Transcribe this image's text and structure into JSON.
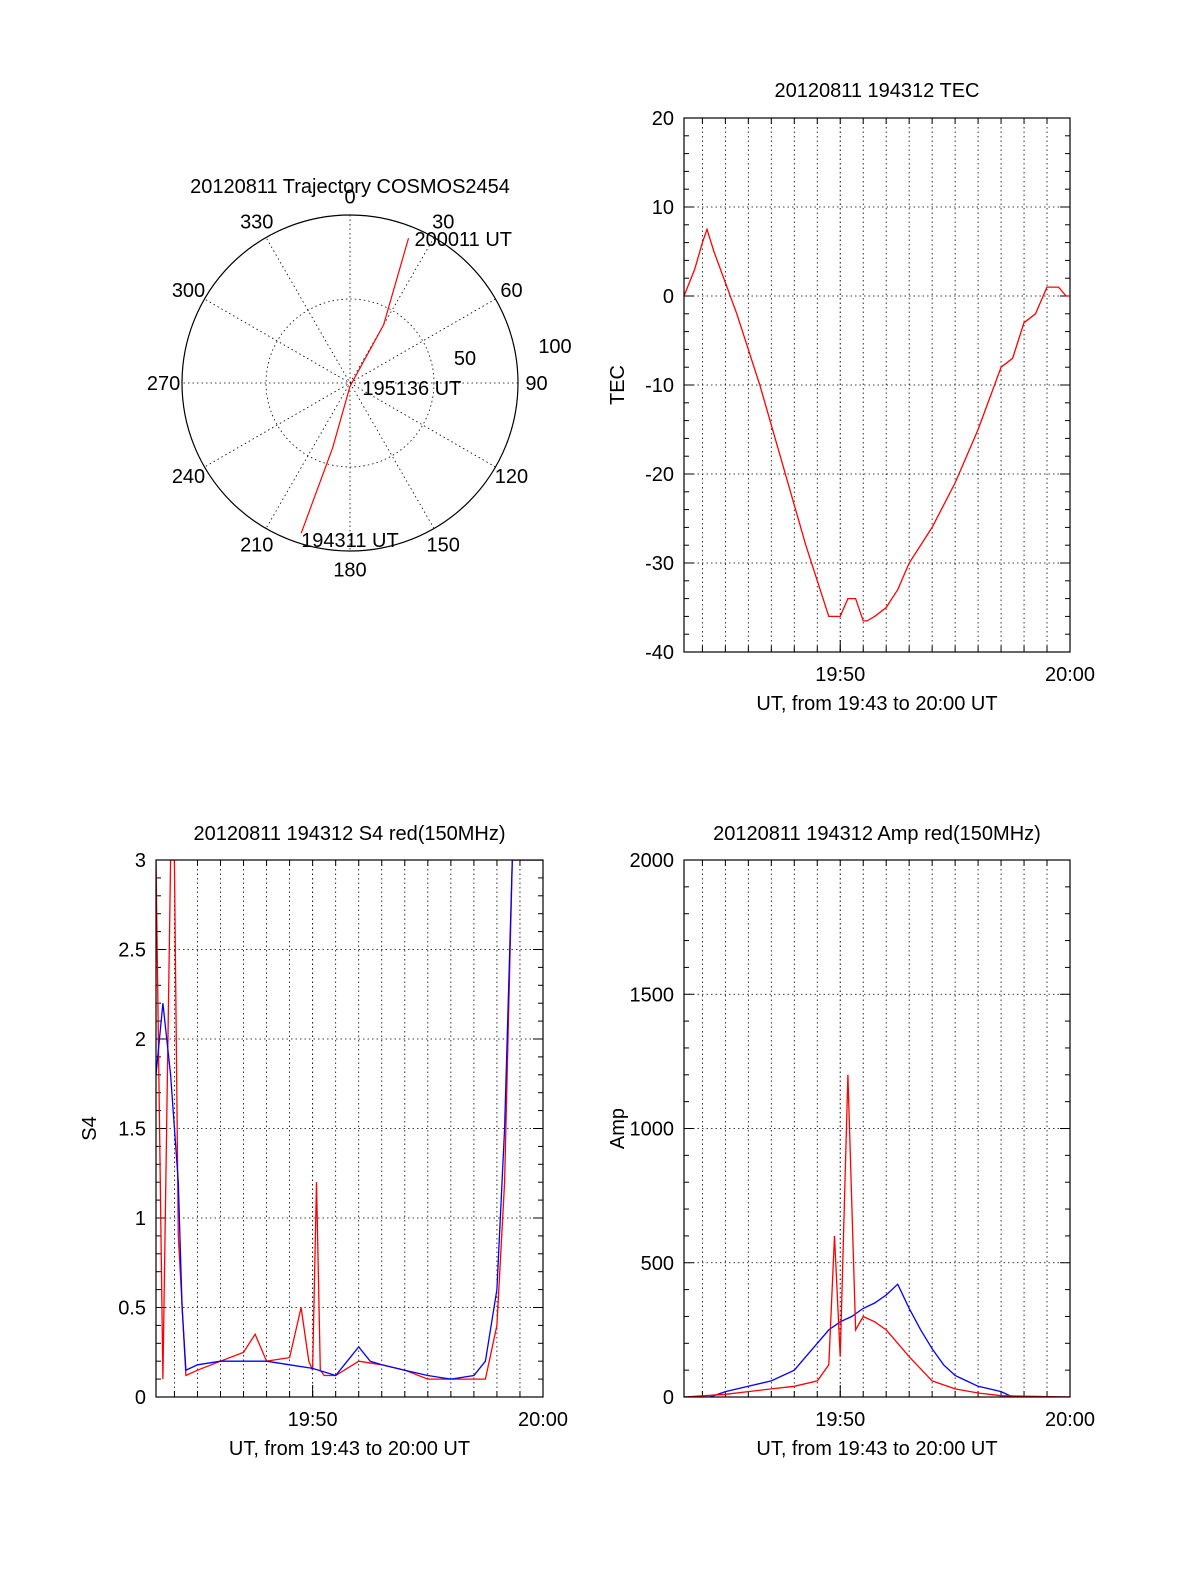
{
  "chart_data": [
    {
      "type": "polar",
      "title": "20120811 Trajectory COSMOS2454",
      "azimuth_labels": [
        "0",
        "30",
        "60",
        "90",
        "120",
        "150",
        "180",
        "210",
        "240",
        "270",
        "300",
        "330"
      ],
      "radial_labels": [
        "50",
        "100"
      ],
      "rlim": [
        0,
        100
      ],
      "grid": true,
      "trajectory": {
        "color": "#ff0000",
        "points": [
          {
            "az": 198,
            "r": 94
          },
          {
            "az": 195,
            "r": 40
          },
          {
            "az": 180,
            "r": 2
          },
          {
            "az": 30,
            "r": 40
          },
          {
            "az": 22,
            "r": 93
          }
        ]
      },
      "annotations": [
        {
          "text": "200011 UT",
          "az": 22,
          "r": 93
        },
        {
          "text": "195136 UT",
          "az": 90,
          "r": 5
        },
        {
          "text": "194311 UT",
          "az": 198,
          "r": 94
        }
      ]
    },
    {
      "type": "line",
      "title": "20120811 194312 TEC",
      "xlabel": "UT, from 19:43 to 20:00 UT",
      "ylabel": "TEC",
      "xlim": [
        "19:43:12",
        "20:00:00"
      ],
      "ylim": [
        -40,
        20
      ],
      "yticks": [
        "20",
        "10",
        "0",
        "-10",
        "-20",
        "-30",
        "-40"
      ],
      "xtick_labels": [
        "19:50",
        "20:00"
      ],
      "grid": true,
      "series": [
        {
          "color": "#ff0000",
          "x": [
            "19:43:12",
            "19:43:40",
            "19:44:00",
            "19:44:12",
            "19:44:30",
            "19:45:30",
            "19:46:30",
            "19:47:30",
            "19:48:30",
            "19:49:00",
            "19:49:30",
            "19:50:00",
            "19:50:20",
            "19:50:40",
            "19:51:00",
            "19:51:10",
            "19:51:30",
            "19:52:00",
            "19:52:30",
            "19:53:00",
            "19:54:00",
            "19:55:00",
            "19:56:00",
            "19:57:00",
            "19:57:30",
            "19:58:00",
            "19:58:30",
            "19:59:00",
            "19:59:30",
            "19:59:50",
            "20:00:00"
          ],
          "y": [
            0,
            3,
            6,
            7.5,
            5,
            -2,
            -10,
            -19,
            -28,
            -32,
            -36,
            -36,
            -34,
            -34,
            -36.5,
            -36.5,
            -36,
            -35,
            -33,
            -30,
            -26,
            -21,
            -15,
            -8,
            -7,
            -3,
            -2,
            1,
            1,
            0,
            0
          ]
        }
      ]
    },
    {
      "type": "line",
      "title": "20120811 194312 S4 red(150MHz)",
      "xlabel": "UT, from 19:43 to 20:00 UT",
      "ylabel": "S4",
      "xlim": [
        "19:43:12",
        "20:00:00"
      ],
      "ylim": [
        0,
        3
      ],
      "yticks": [
        "3",
        "2.5",
        "2",
        "1.5",
        "1",
        "0.5",
        "0"
      ],
      "xtick_labels": [
        "19:50",
        "20:00"
      ],
      "grid": true,
      "series": [
        {
          "color": "#ff0000",
          "x": [
            "19:43:12",
            "19:43:30",
            "19:43:50",
            "19:44:00",
            "19:44:10",
            "19:44:30",
            "19:45:00",
            "19:46:00",
            "19:47:00",
            "19:47:30",
            "19:48:00",
            "19:49:00",
            "19:49:30",
            "19:49:50",
            "19:50:00",
            "19:50:10",
            "19:50:20",
            "19:50:30",
            "19:51:00",
            "19:52:00",
            "19:53:00",
            "19:54:00",
            "19:55:00",
            "19:56:00",
            "19:57:00",
            "19:57:30",
            "19:58:00",
            "19:58:20",
            "19:58:40",
            "19:59:00",
            "19:59:30",
            "20:00:00"
          ],
          "y": [
            3,
            0.1,
            3,
            3,
            0.9,
            0.12,
            0.15,
            0.2,
            0.25,
            0.35,
            0.2,
            0.22,
            0.5,
            0.2,
            0.15,
            1.2,
            0.15,
            0.12,
            0.12,
            0.2,
            0.18,
            0.15,
            0.1,
            0.1,
            0.1,
            0.1,
            0.4,
            1.2,
            3,
            3,
            3,
            3
          ]
        },
        {
          "color": "#0000ff",
          "x": [
            "19:43:12",
            "19:43:30",
            "19:43:50",
            "19:44:10",
            "19:44:20",
            "19:44:30",
            "19:45:00",
            "19:46:00",
            "19:47:00",
            "19:48:00",
            "19:49:00",
            "19:50:00",
            "19:51:00",
            "19:51:30",
            "19:52:00",
            "19:52:30",
            "19:53:00",
            "19:54:00",
            "19:55:00",
            "19:56:00",
            "19:57:00",
            "19:57:30",
            "19:58:00",
            "19:58:20",
            "19:58:40",
            "19:59:00",
            "19:59:30",
            "20:00:00"
          ],
          "y": [
            1.8,
            2.2,
            1.8,
            1.2,
            0.5,
            0.15,
            0.18,
            0.2,
            0.2,
            0.2,
            0.18,
            0.16,
            0.12,
            0.2,
            0.28,
            0.2,
            0.18,
            0.15,
            0.12,
            0.1,
            0.12,
            0.2,
            0.6,
            1.5,
            3,
            3,
            3,
            3
          ]
        }
      ]
    },
    {
      "type": "line",
      "title": "20120811 194312 Amp red(150MHz)",
      "xlabel": "UT, from 19:43 to 20:00 UT",
      "ylabel": "Amp",
      "xlim": [
        "19:43:12",
        "20:00:00"
      ],
      "ylim": [
        0,
        2000
      ],
      "yticks": [
        "2000",
        "1500",
        "1000",
        "500",
        "0"
      ],
      "xtick_labels": [
        "19:50",
        "20:00"
      ],
      "grid": true,
      "series": [
        {
          "color": "#0000ff",
          "x": [
            "19:43:12",
            "19:44:20",
            "19:45:00",
            "19:46:00",
            "19:47:00",
            "19:48:00",
            "19:48:30",
            "19:49:00",
            "19:49:30",
            "19:50:00",
            "19:50:30",
            "19:51:00",
            "19:51:30",
            "19:52:00",
            "19:52:30",
            "19:53:00",
            "19:53:30",
            "19:54:00",
            "19:54:30",
            "19:55:00",
            "19:55:30",
            "19:56:00",
            "19:56:30",
            "19:57:00",
            "19:57:30",
            "20:00:00"
          ],
          "y": [
            0,
            0,
            20,
            40,
            60,
            100,
            150,
            200,
            250,
            280,
            300,
            330,
            350,
            380,
            420,
            330,
            250,
            180,
            120,
            80,
            60,
            40,
            30,
            20,
            0,
            0
          ]
        },
        {
          "color": "#ff0000",
          "x": [
            "19:43:12",
            "19:45:00",
            "19:46:00",
            "19:47:00",
            "19:48:00",
            "19:49:00",
            "19:49:30",
            "19:49:45",
            "19:50:00",
            "19:50:20",
            "19:50:40",
            "19:51:00",
            "19:51:30",
            "19:52:00",
            "19:53:00",
            "19:54:00",
            "19:55:00",
            "19:56:00",
            "19:57:00",
            "20:00:00"
          ],
          "y": [
            0,
            10,
            20,
            30,
            40,
            60,
            120,
            600,
            150,
            1200,
            250,
            300,
            280,
            250,
            150,
            60,
            30,
            15,
            5,
            0
          ]
        }
      ]
    }
  ]
}
